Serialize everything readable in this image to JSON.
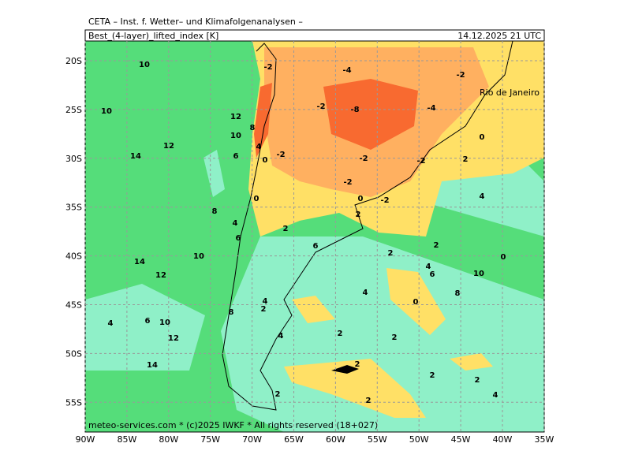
{
  "header": {
    "agency": "CETA – Inst. f. Wetter– und Klimafolgenanalysen –",
    "title": "Best_(4-layer)_lifted_index [K]",
    "valid_time": "14.12.2025  21 UTC"
  },
  "map": {
    "lat_labels": [
      "20S",
      "25S",
      "30S",
      "35S",
      "40S",
      "45S",
      "50S",
      "55S"
    ],
    "lon_labels": [
      "90W",
      "85W",
      "80W",
      "75W",
      "70W",
      "65W",
      "60W",
      "55W",
      "50W",
      "45W",
      "40W",
      "35W"
    ],
    "city": "Rio de Janeiro",
    "contour_labels": [
      "10",
      "10",
      "12",
      "12",
      "14",
      "10",
      "8",
      "6",
      "4",
      "0",
      "-2",
      "-2",
      "-4",
      "-2",
      "-8",
      "-2",
      "-4",
      "0",
      "2",
      "-2",
      "-2",
      "-2",
      "0",
      "-2",
      "2",
      "4",
      "8",
      "0",
      "4",
      "2",
      "6",
      "2",
      "2",
      "0",
      "14",
      "10",
      "12",
      "4",
      "6",
      "10",
      "4",
      "0",
      "8",
      "4",
      "2",
      "8",
      "4",
      "6",
      "10",
      "12",
      "2",
      "2",
      "4",
      "14",
      "2",
      "2",
      "2",
      "4",
      "2",
      "2",
      "6"
    ]
  },
  "footer": "meteo-services.com * (c)2025 IWKF * All rights reserved (18+027)"
}
